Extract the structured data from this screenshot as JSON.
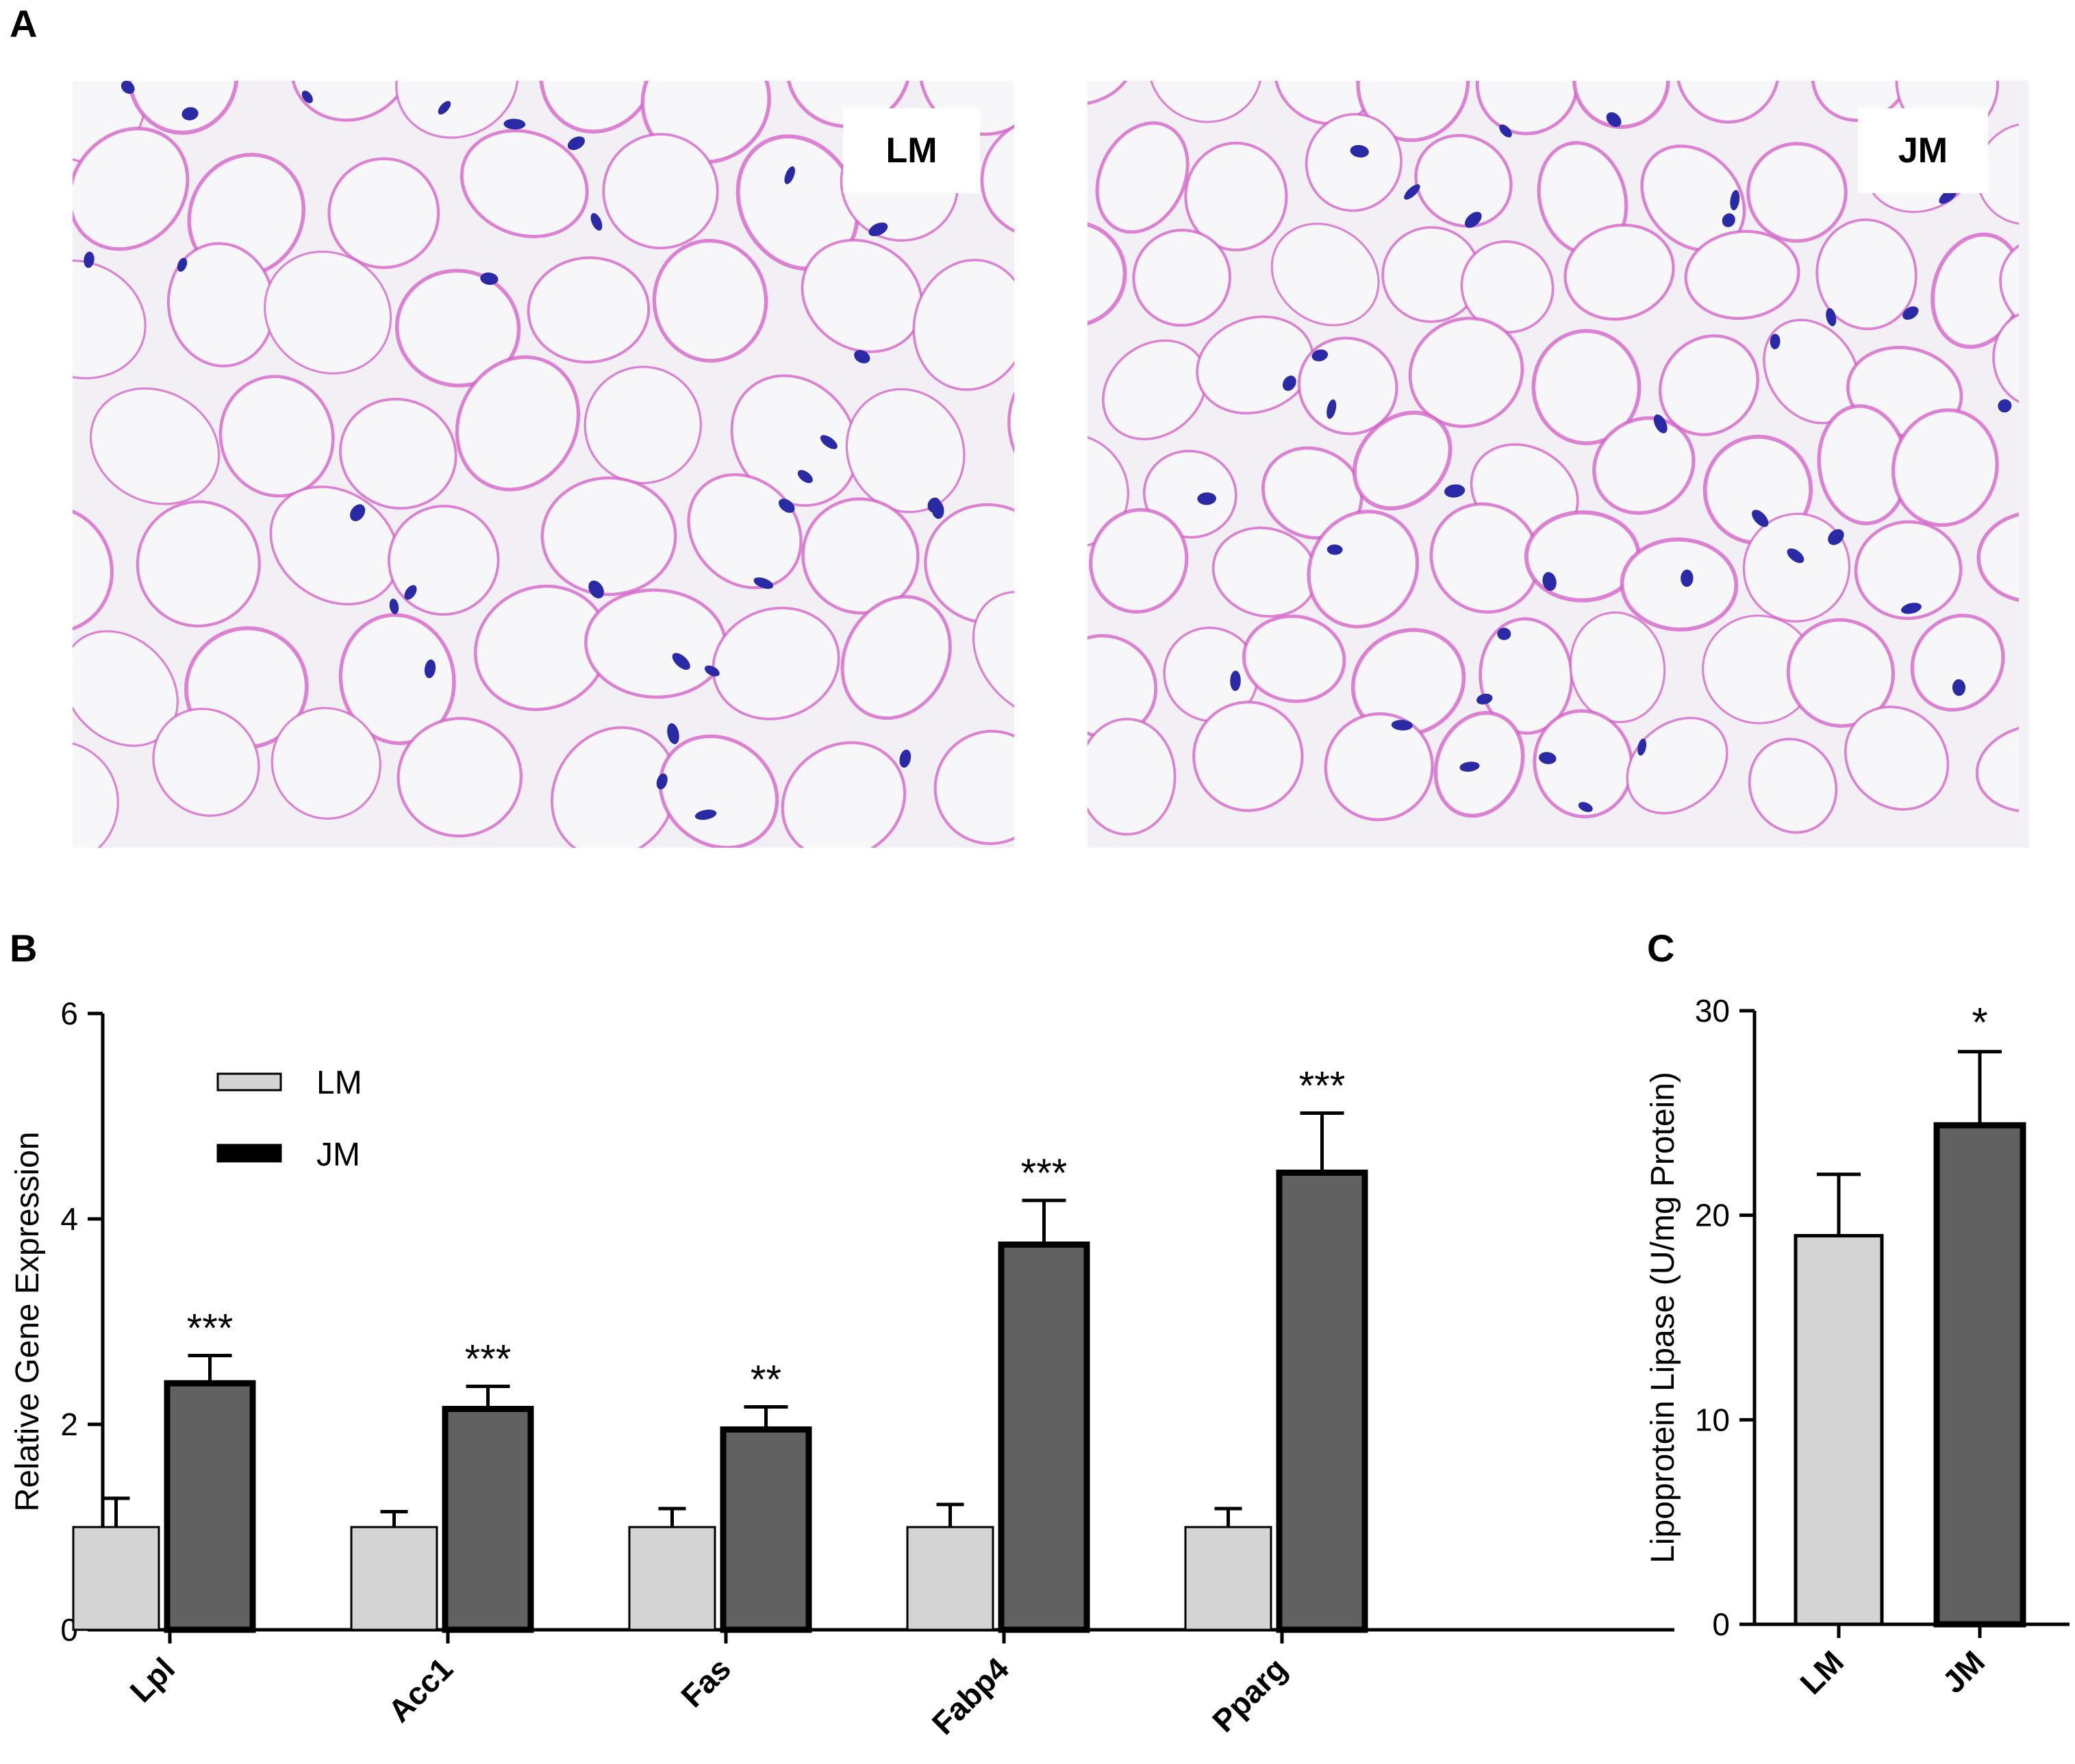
{
  "panels": {
    "a_letter": "A",
    "b_letter": "B",
    "c_letter": "C"
  },
  "micrographs": [
    {
      "label": "LM"
    },
    {
      "label": "JM"
    }
  ],
  "colors": {
    "LM_fill": "#d4d4d4",
    "JM_fill": "#616161",
    "stain_pink": "#d35bc6",
    "nucleus_blue": "#2a2aa6"
  },
  "chart_data": [
    {
      "type": "bar",
      "panel": "B",
      "categories": [
        "Lpl",
        "Acc1",
        "Fas",
        "Fabp4",
        "Pparg"
      ],
      "series": [
        {
          "name": "LM",
          "values": [
            1.0,
            1.0,
            1.0,
            1.0,
            1.0
          ],
          "errors": [
            0.28,
            0.15,
            0.18,
            0.22,
            0.18
          ]
        },
        {
          "name": "JM",
          "values": [
            2.4,
            2.15,
            1.95,
            3.75,
            4.45
          ],
          "errors": [
            0.27,
            0.22,
            0.22,
            0.43,
            0.58
          ]
        }
      ],
      "annotations": [
        "***",
        "***",
        "**",
        "***",
        "***"
      ],
      "ylabel": "Relative Gene Expression",
      "ylim": [
        0,
        6
      ],
      "yticks": [
        "0",
        "2",
        "4",
        "6"
      ],
      "legend": "top-left",
      "grid": false
    },
    {
      "type": "bar",
      "panel": "C",
      "categories": [
        "LM",
        "JM"
      ],
      "values": [
        19,
        24.4
      ],
      "errors": [
        3,
        3.6
      ],
      "annotations": [
        "",
        "*"
      ],
      "ylabel": "Lipoprotein Lipase (U/mg Protein)",
      "ylim": [
        0,
        30
      ],
      "yticks": [
        "0",
        "10",
        "20",
        "30"
      ],
      "grid": false
    }
  ]
}
